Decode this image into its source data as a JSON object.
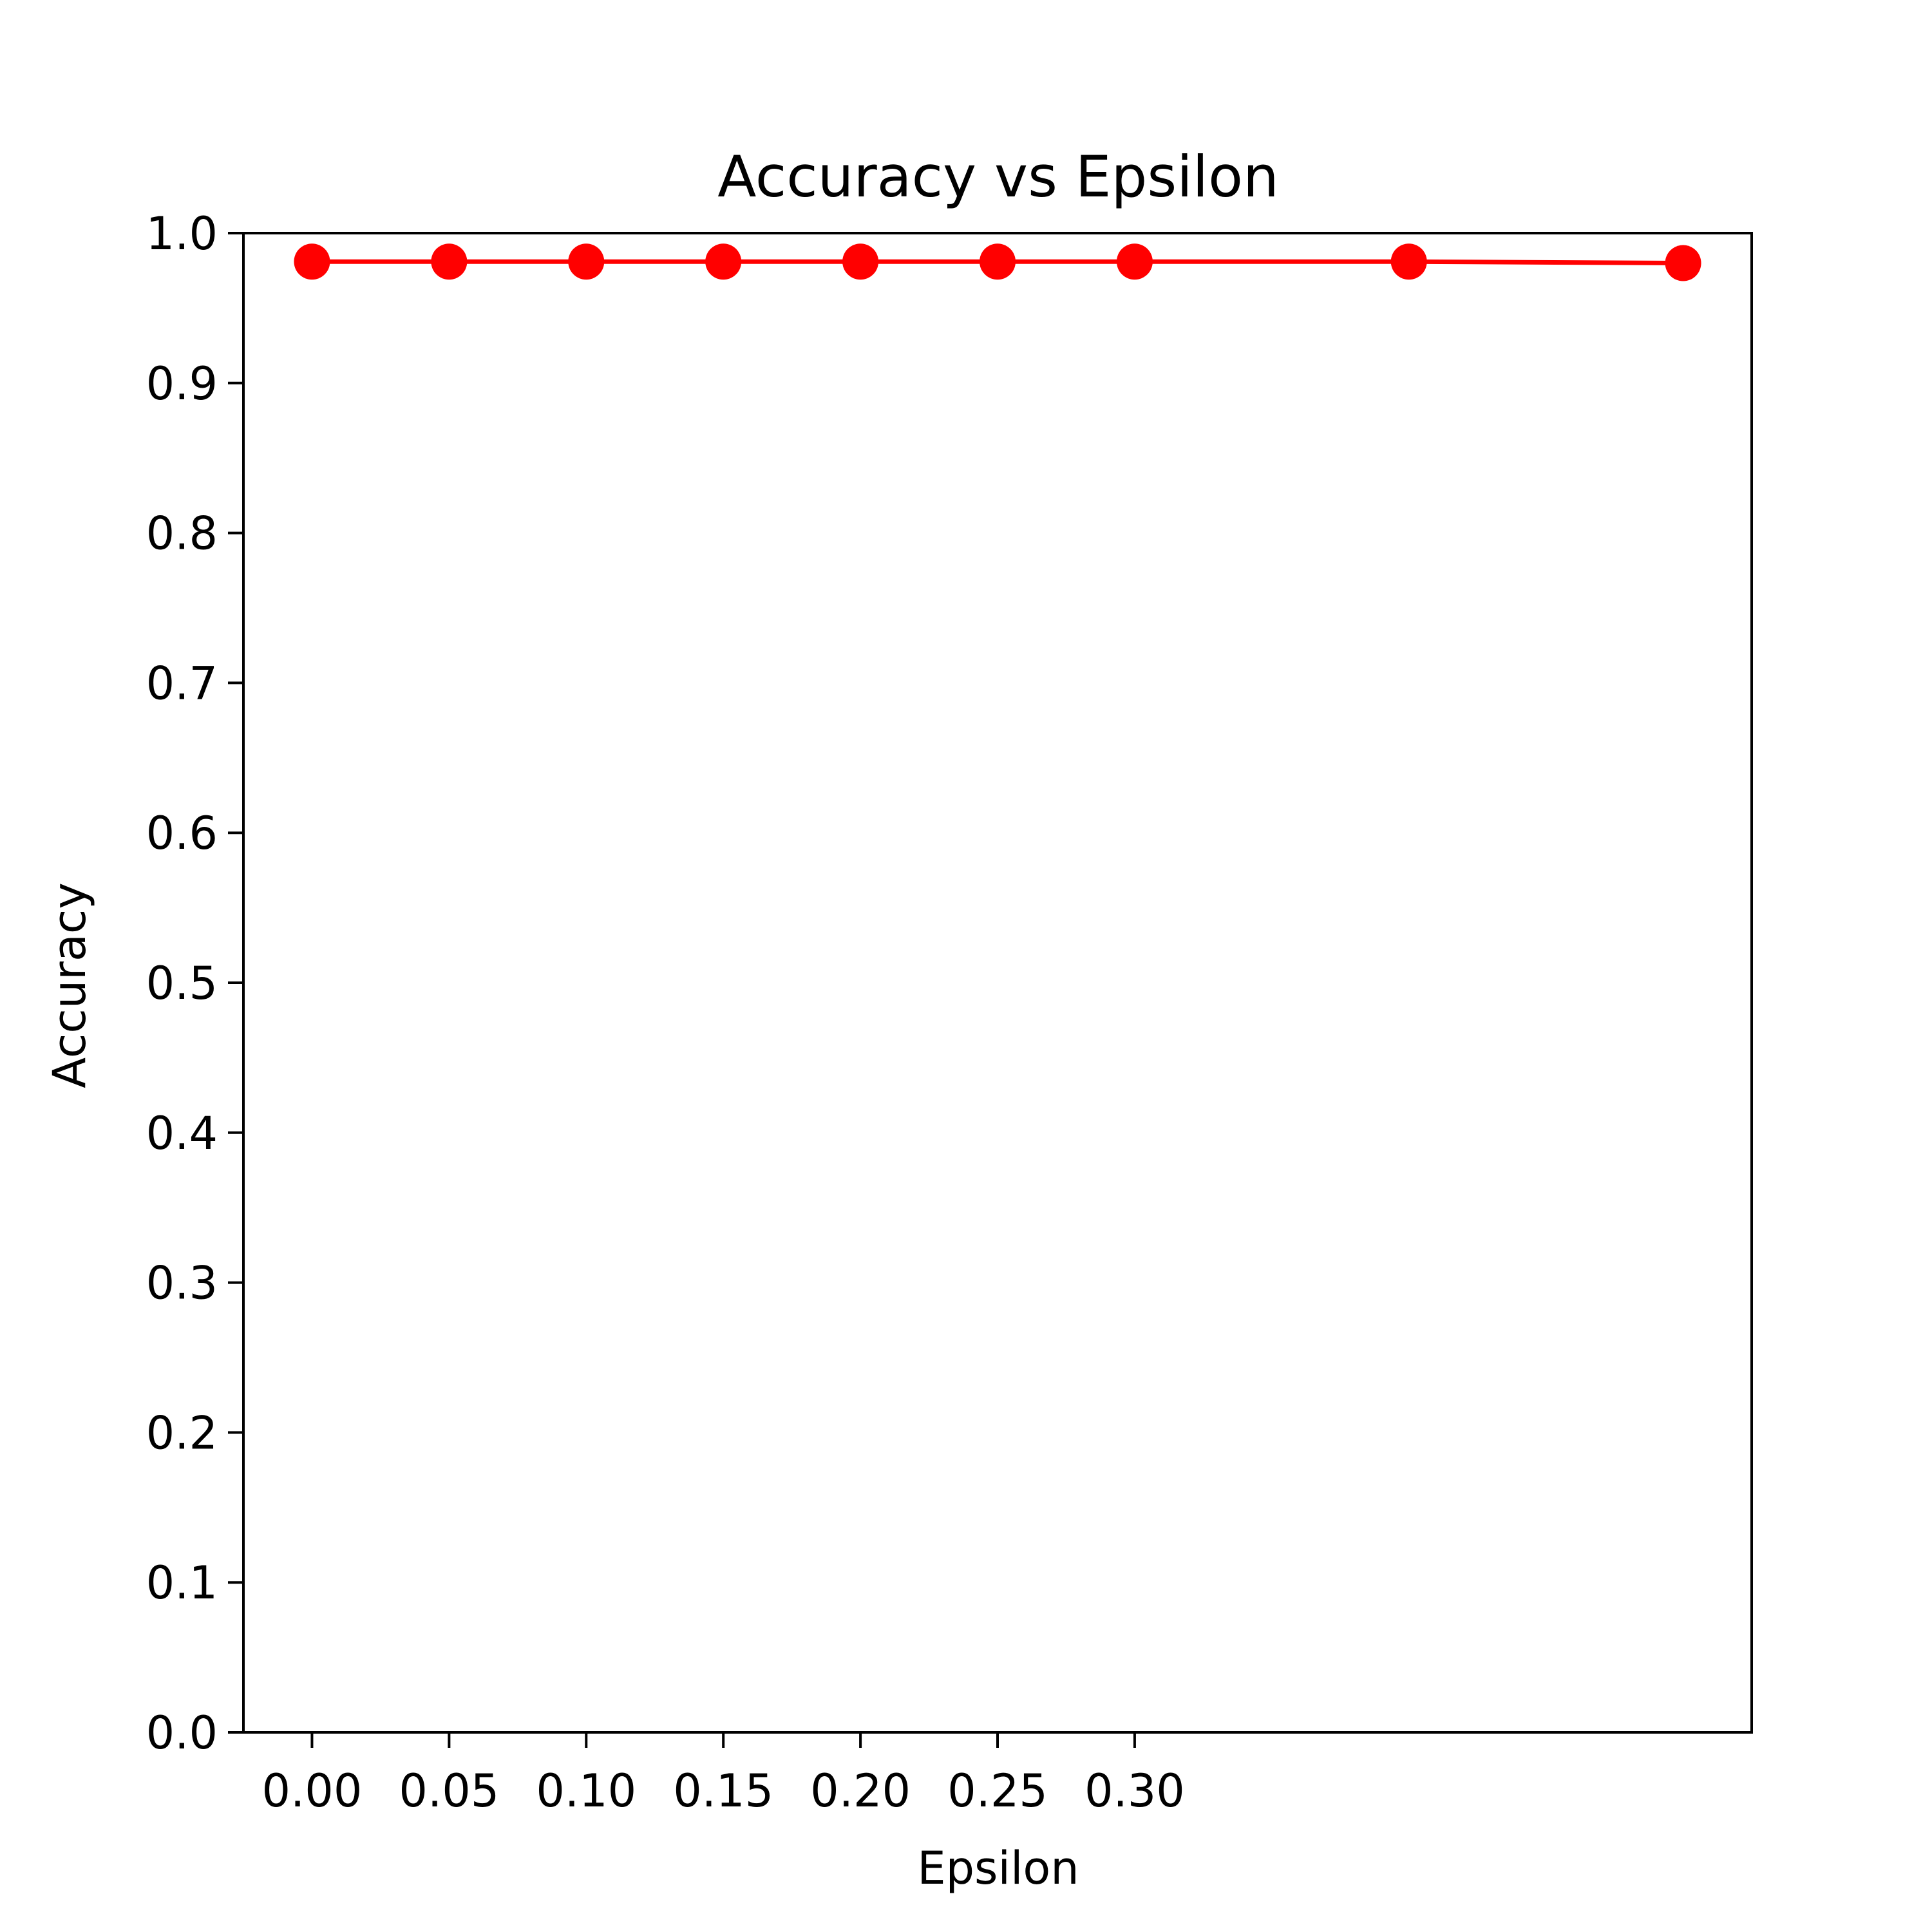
{
  "chart_data": {
    "type": "line",
    "title": "Accuracy vs Epsilon",
    "xlabel": "Epsilon",
    "ylabel": "Accuracy",
    "x": [
      0.0,
      0.05,
      0.1,
      0.15,
      0.2,
      0.25,
      0.3,
      0.4,
      0.5
    ],
    "series": [
      {
        "values": [
          0.981,
          0.981,
          0.981,
          0.981,
          0.981,
          0.981,
          0.981,
          0.981,
          0.98
        ],
        "color": "#ff0000",
        "marker": "circle"
      }
    ],
    "xlim": [
      -0.025,
      0.525
    ],
    "ylim": [
      0.0,
      1.0
    ],
    "xticks": [
      0.0,
      0.05,
      0.1,
      0.15,
      0.2,
      0.25,
      0.3
    ],
    "xtick_labels": [
      "0.00",
      "0.05",
      "0.10",
      "0.15",
      "0.20",
      "0.25",
      "0.30"
    ],
    "yticks": [
      0.0,
      0.1,
      0.2,
      0.3,
      0.4,
      0.5,
      0.6,
      0.7,
      0.8,
      0.9,
      1.0
    ],
    "ytick_labels": [
      "0.0",
      "0.1",
      "0.2",
      "0.3",
      "0.4",
      "0.5",
      "0.6",
      "0.7",
      "0.8",
      "0.9",
      "1.0"
    ],
    "grid": false,
    "legend": false
  }
}
